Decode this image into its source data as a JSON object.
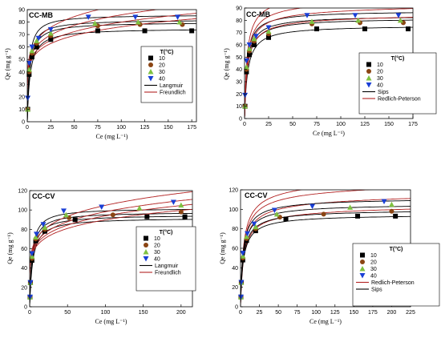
{
  "figure": {
    "background": "#ffffff"
  },
  "chart_data": [
    {
      "type": "scatter",
      "title": "CC-MB",
      "xlabel": "Ce (mg L⁻¹)",
      "ylabel": "Qe (mg g⁻¹)",
      "xlim": [
        0,
        180
      ],
      "ylim": [
        0,
        90
      ],
      "xticks": [
        0,
        25,
        50,
        75,
        100,
        125,
        150,
        175
      ],
      "yticks": [
        0,
        10,
        20,
        30,
        40,
        50,
        60,
        70,
        80,
        90
      ],
      "legend_title": "T(°C)",
      "legend_position": "center-right",
      "series": [
        {
          "name": "10",
          "marker": "square",
          "color": "#000000",
          "x": [
            0.5,
            2,
            5,
            10,
            25,
            75,
            125,
            175
          ],
          "y": [
            10,
            38,
            52,
            60,
            66,
            73,
            73,
            73
          ]
        },
        {
          "name": "20",
          "marker": "circle",
          "color": "#8b4513",
          "x": [
            0.5,
            2,
            5,
            10,
            25,
            75,
            120,
            165
          ],
          "y": [
            10,
            40,
            55,
            63,
            69,
            77,
            78,
            78
          ]
        },
        {
          "name": "30",
          "marker": "triangle-up",
          "color": "#7fc241",
          "x": [
            0.5,
            2,
            5,
            10,
            25,
            72,
            118,
            162
          ],
          "y": [
            10,
            42,
            57,
            65,
            71,
            79,
            80,
            80
          ]
        },
        {
          "name": "40",
          "marker": "triangle-down",
          "color": "#1a3fd6",
          "x": [
            0.5,
            2,
            5,
            12,
            25,
            65,
            115,
            160
          ],
          "y": [
            19,
            47,
            60,
            67,
            74,
            84,
            84,
            84
          ]
        }
      ],
      "models": [
        {
          "name": "Langmuir",
          "color": "#000000",
          "kind": "langmuir",
          "params": [
            {
              "qm": 75,
              "k": 0.32
            },
            {
              "qm": 80,
              "k": 0.38
            },
            {
              "qm": 82,
              "k": 0.42
            },
            {
              "qm": 86,
              "k": 0.48
            }
          ]
        },
        {
          "name": "Freundlich",
          "color": "#b22222",
          "kind": "freundlich",
          "params": [
            {
              "kf": 40,
              "n": 0.14
            },
            {
              "kf": 41,
              "n": 0.145
            },
            {
              "kf": 43,
              "n": 0.15
            },
            {
              "kf": 46,
              "n": 0.155
            }
          ]
        }
      ]
    },
    {
      "type": "scatter",
      "title": "CC-MB",
      "xlabel": "Ce (mg L⁻¹)",
      "ylabel": "Qe (mg g⁻¹)",
      "xlim": [
        0,
        175
      ],
      "ylim": [
        0,
        90
      ],
      "xticks": [
        0,
        25,
        50,
        75,
        100,
        125,
        150,
        175
      ],
      "yticks": [
        0,
        10,
        20,
        30,
        40,
        50,
        60,
        70,
        80,
        90
      ],
      "legend_title": "T(°C)",
      "legend_position": "bottom-right",
      "series": [
        {
          "name": "10",
          "marker": "square",
          "color": "#000000",
          "x": [
            0.5,
            2,
            5,
            10,
            25,
            75,
            125,
            170
          ],
          "y": [
            10,
            38,
            52,
            60,
            66,
            73,
            73,
            73
          ]
        },
        {
          "name": "20",
          "marker": "circle",
          "color": "#8b4513",
          "x": [
            0.5,
            2,
            5,
            10,
            25,
            70,
            120,
            165
          ],
          "y": [
            10,
            40,
            55,
            63,
            69,
            77,
            78,
            78
          ]
        },
        {
          "name": "30",
          "marker": "triangle-up",
          "color": "#7fc241",
          "x": [
            0.5,
            2,
            5,
            10,
            25,
            70,
            118,
            162
          ],
          "y": [
            10,
            42,
            57,
            65,
            71,
            79,
            80,
            80
          ]
        },
        {
          "name": "40",
          "marker": "triangle-down",
          "color": "#1a3fd6",
          "x": [
            0.5,
            2,
            5,
            12,
            25,
            65,
            115,
            160
          ],
          "y": [
            19,
            47,
            60,
            67,
            74,
            84,
            84,
            84
          ]
        }
      ],
      "models": [
        {
          "name": "Sips",
          "color": "#000000",
          "kind": "sips",
          "params": [
            {
              "qm": 76,
              "k": 0.3,
              "n": 0.95
            },
            {
              "qm": 82,
              "k": 0.33,
              "n": 0.93
            },
            {
              "qm": 84,
              "k": 0.36,
              "n": 0.92
            },
            {
              "qm": 88,
              "k": 0.42,
              "n": 0.9
            }
          ]
        },
        {
          "name": "Redlich-Peterson",
          "color": "#b22222",
          "kind": "rp",
          "params": [
            {
              "a": 28,
              "b": 0.37,
              "g": 0.98
            },
            {
              "a": 32,
              "b": 0.4,
              "g": 0.975
            },
            {
              "a": 35,
              "b": 0.42,
              "g": 0.97
            },
            {
              "a": 42,
              "b": 0.48,
              "g": 0.965
            }
          ]
        }
      ]
    },
    {
      "type": "scatter",
      "title": "CC-CV",
      "xlabel": "Ce (mg L⁻¹)",
      "ylabel": "Qe (mg g⁻¹)",
      "xlim": [
        0,
        215
      ],
      "ylim": [
        0,
        120
      ],
      "xticks": [
        0,
        50,
        100,
        150,
        200
      ],
      "yticks": [
        0,
        20,
        40,
        60,
        80,
        100,
        120
      ],
      "legend_title": "T(°C)",
      "legend_position": "center-right",
      "series": [
        {
          "name": "10",
          "marker": "square",
          "color": "#000000",
          "x": [
            0.5,
            1,
            3,
            8,
            20,
            60,
            155,
            205
          ],
          "y": [
            10,
            25,
            48,
            68,
            78,
            90,
            93,
            93
          ]
        },
        {
          "name": "20",
          "marker": "circle",
          "color": "#8b4513",
          "x": [
            0.5,
            1,
            3,
            8,
            20,
            52,
            110,
            200
          ],
          "y": [
            10,
            25,
            50,
            70,
            80,
            92,
            95,
            98
          ]
        },
        {
          "name": "30",
          "marker": "triangle-up",
          "color": "#7fc241",
          "x": [
            0.5,
            1,
            3,
            8,
            20,
            48,
            145,
            200
          ],
          "y": [
            10,
            25,
            52,
            72,
            82,
            95,
            102,
            105
          ]
        },
        {
          "name": "40",
          "marker": "triangle-down",
          "color": "#1a3fd6",
          "x": [
            0.5,
            1,
            3,
            9,
            18,
            45,
            95,
            190
          ],
          "y": [
            10,
            25,
            55,
            75,
            85,
            99,
            103,
            108
          ]
        }
      ],
      "models": [
        {
          "name": "Langmuir",
          "color": "#000000",
          "kind": "langmuir",
          "params": [
            {
              "qm": 92,
              "k": 0.25
            },
            {
              "qm": 95,
              "k": 0.28
            },
            {
              "qm": 98,
              "k": 0.3
            },
            {
              "qm": 102,
              "k": 0.33
            }
          ]
        },
        {
          "name": "Freundlich",
          "color": "#b22222",
          "kind": "freundlich",
          "params": [
            {
              "kf": 45,
              "n": 0.15
            },
            {
              "kf": 46,
              "n": 0.155
            },
            {
              "kf": 47,
              "n": 0.16
            },
            {
              "kf": 49,
              "n": 0.165
            }
          ]
        }
      ]
    },
    {
      "type": "scatter",
      "title": "CC-CV",
      "xlabel": "Ce (mg L⁻¹)",
      "ylabel": "Qe (mg g⁻¹)",
      "xlim": [
        0,
        225
      ],
      "ylim": [
        0,
        120
      ],
      "xticks": [
        0,
        25,
        50,
        75,
        100,
        125,
        150,
        175,
        200,
        225
      ],
      "yticks": [
        0,
        20,
        40,
        60,
        80,
        100,
        120
      ],
      "legend_title": "T(°C)",
      "legend_position": "bottom-right",
      "series": [
        {
          "name": "10",
          "marker": "square",
          "color": "#000000",
          "x": [
            0.5,
            1,
            3,
            8,
            20,
            60,
            155,
            205
          ],
          "y": [
            10,
            25,
            48,
            68,
            78,
            90,
            93,
            93
          ]
        },
        {
          "name": "20",
          "marker": "circle",
          "color": "#8b4513",
          "x": [
            0.5,
            1,
            3,
            8,
            20,
            52,
            110,
            200
          ],
          "y": [
            10,
            25,
            50,
            70,
            80,
            92,
            95,
            98
          ]
        },
        {
          "name": "30",
          "marker": "triangle-up",
          "color": "#7fc241",
          "x": [
            0.5,
            1,
            3,
            8,
            20,
            48,
            145,
            200
          ],
          "y": [
            10,
            25,
            52,
            72,
            82,
            95,
            102,
            105
          ]
        },
        {
          "name": "40",
          "marker": "triangle-down",
          "color": "#1a3fd6",
          "x": [
            0.5,
            1,
            3,
            9,
            18,
            45,
            95,
            190
          ],
          "y": [
            10,
            25,
            55,
            75,
            85,
            99,
            103,
            108
          ]
        }
      ],
      "models": [
        {
          "name": "Redlich-Peterson",
          "color": "#b22222",
          "kind": "rp",
          "params": [
            {
              "a": 26,
              "b": 0.3,
              "g": 0.97
            },
            {
              "a": 29,
              "b": 0.31,
              "g": 0.965
            },
            {
              "a": 32,
              "b": 0.32,
              "g": 0.96
            },
            {
              "a": 35,
              "b": 0.34,
              "g": 0.955
            }
          ]
        },
        {
          "name": "Sips",
          "color": "#000000",
          "kind": "sips",
          "params": [
            {
              "qm": 95,
              "k": 0.26,
              "n": 0.9
            },
            {
              "qm": 100,
              "k": 0.27,
              "n": 0.88
            },
            {
              "qm": 106,
              "k": 0.28,
              "n": 0.86
            },
            {
              "qm": 112,
              "k": 0.29,
              "n": 0.85
            }
          ]
        }
      ]
    }
  ]
}
